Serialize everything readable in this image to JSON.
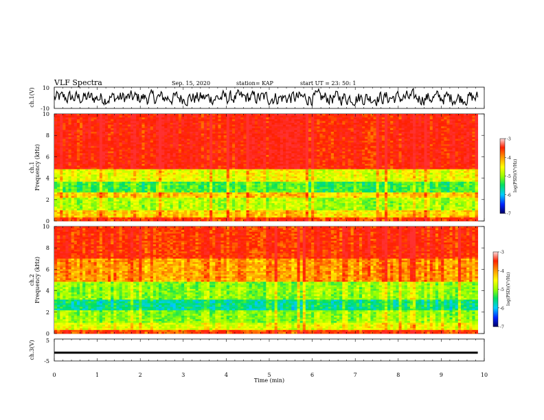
{
  "header": {
    "title": "VLF Spectra",
    "date": "Sep. 15, 2020",
    "station": "station= KAP",
    "start_time": "start  UT =   23: 50: 1"
  },
  "colors": {
    "background": "#ffffff",
    "axis": "#000000",
    "colormap": [
      "#000066",
      "#0022ff",
      "#00ccff",
      "#00e060",
      "#9aff00",
      "#ffff00",
      "#ff9900",
      "#ff2000",
      "#ff3030"
    ]
  },
  "chart_data": [
    {
      "type": "line",
      "panel": "waveform-ch1",
      "ylabel": "ch.1(V)",
      "ylim": [
        -10,
        10
      ],
      "y_ticks": [
        "10",
        "-10"
      ],
      "xlim": [
        0,
        10
      ],
      "series": [
        {
          "values_description_omitted": true,
          "rms_V": 3.5,
          "mean_V": 0,
          "span_min": [
            0,
            9.85
          ]
        }
      ]
    },
    {
      "type": "heatmap",
      "panel": "spectrogram-ch1",
      "ylabel": "Frequency (kHz)",
      "channel_label": "ch.1",
      "ylim": [
        0,
        10
      ],
      "y_ticks": [
        "0",
        "2",
        "4",
        "6",
        "8",
        "10"
      ],
      "xlim": [
        0,
        10
      ],
      "data_span_min": [
        0,
        9.85
      ],
      "bands_khz": [
        {
          "range": [
            0,
            0.3
          ],
          "log_psd": -3.6
        },
        {
          "range": [
            0.3,
            1.0
          ],
          "log_psd": -4.3
        },
        {
          "range": [
            1.0,
            2.2
          ],
          "log_psd": -4.9
        },
        {
          "range": [
            2.2,
            2.6
          ],
          "log_psd": -4.3
        },
        {
          "range": [
            2.6,
            3.6
          ],
          "log_psd": -5.3
        },
        {
          "range": [
            3.6,
            4.9
          ],
          "log_psd": -4.6
        },
        {
          "range": [
            4.9,
            10.0
          ],
          "log_psd": -3.4
        }
      ],
      "colorbar": {
        "label": "log(PSD)(V²/Hz)",
        "range": [
          -7,
          -3
        ],
        "ticks": [
          "-3",
          "-4",
          "-5",
          "-6",
          "-7"
        ]
      }
    },
    {
      "type": "heatmap",
      "panel": "spectrogram-ch2",
      "ylabel": "Frequency (kHz)",
      "channel_label": "ch.2",
      "ylim": [
        0,
        10
      ],
      "y_ticks": [
        "0",
        "2",
        "4",
        "6",
        "8",
        "10"
      ],
      "xlim": [
        0,
        10
      ],
      "data_span_min": [
        0,
        9.85
      ],
      "bands_khz": [
        {
          "range": [
            0,
            0.3
          ],
          "log_psd": -3.6
        },
        {
          "range": [
            0.3,
            1.0
          ],
          "log_psd": -4.6
        },
        {
          "range": [
            1.0,
            2.2
          ],
          "log_psd": -5.0
        },
        {
          "range": [
            2.2,
            3.2
          ],
          "log_psd": -5.6
        },
        {
          "range": [
            3.2,
            4.8
          ],
          "log_psd": -5.0
        },
        {
          "range": [
            4.8,
            7.0
          ],
          "log_psd": -4.0
        },
        {
          "range": [
            7.0,
            10.0
          ],
          "log_psd": -3.5
        }
      ],
      "colorbar": {
        "label": "log(PSD)(V²/Hz)",
        "range": [
          -7,
          -3
        ],
        "ticks": [
          "-3",
          "-4",
          "-5",
          "-6",
          "-7"
        ]
      }
    },
    {
      "type": "line",
      "panel": "waveform-ch3",
      "ylabel": "ch.3(V)",
      "ylim": [
        -5,
        5
      ],
      "y_ticks": [
        "5",
        "-5"
      ],
      "xlim": [
        0,
        10
      ],
      "series": [
        {
          "constant_V": -1.0,
          "thickness_V": 0.5,
          "span_min": [
            0,
            9.85
          ]
        }
      ]
    }
  ],
  "xaxis": {
    "label": "Time (min)",
    "ticks": [
      "0",
      "1",
      "2",
      "3",
      "4",
      "5",
      "6",
      "7",
      "8",
      "9",
      "10"
    ]
  }
}
